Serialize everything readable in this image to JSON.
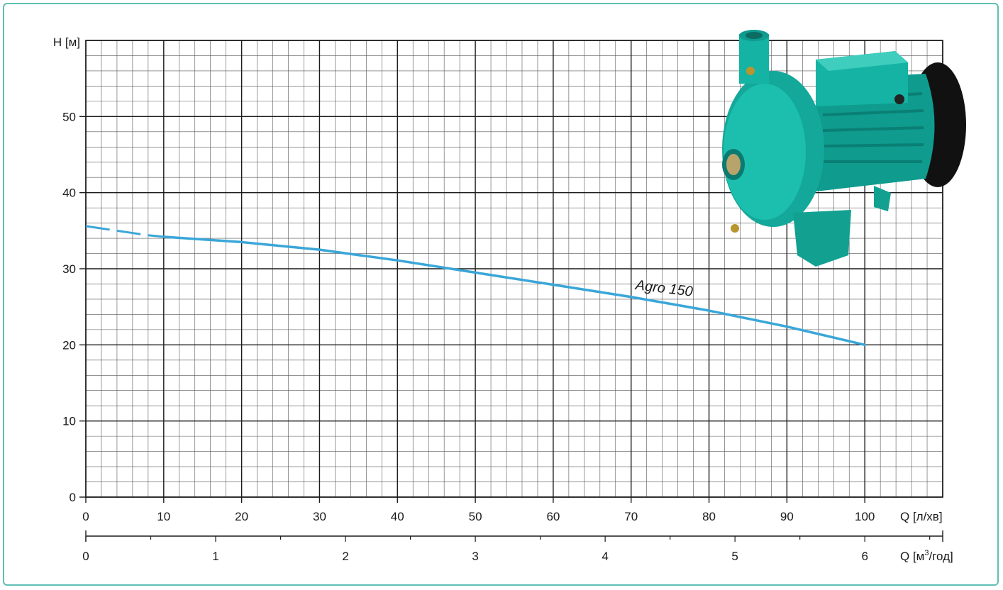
{
  "chart_data": {
    "type": "line",
    "title": "",
    "xlabel": "Q [л/хв]",
    "x2label_prefix": "Q [м",
    "x2label_sup": "3",
    "x2label_suffix": "/год]",
    "ylabel": "H [м]",
    "xlim": [
      0,
      110
    ],
    "ylim": [
      0,
      60
    ],
    "x2lim": [
      0,
      6.6
    ],
    "x_ticks": [
      0,
      10,
      20,
      30,
      40,
      50,
      60,
      70,
      80,
      90,
      100
    ],
    "y_ticks": [
      0,
      10,
      20,
      30,
      40,
      50
    ],
    "x2_ticks": [
      0,
      1,
      2,
      3,
      4,
      5,
      6
    ],
    "grid": true,
    "series": [
      {
        "name": "Agro 150",
        "color": "#3aa6d8",
        "dashed_segment": {
          "x": [
            0,
            2,
            4,
            6,
            8,
            10
          ],
          "y": [
            35.6,
            35.3,
            35.0,
            34.7,
            34.4,
            34.2
          ]
        },
        "x": [
          10,
          20,
          30,
          40,
          50,
          60,
          70,
          80,
          90,
          100
        ],
        "y": [
          34.2,
          33.5,
          32.5,
          31.1,
          29.5,
          27.9,
          26.3,
          24.5,
          22.4,
          20.0
        ]
      }
    ]
  },
  "image": {
    "name": "pump-photo",
    "body_color": "#13a89a",
    "motor_cap_color": "#111111"
  }
}
